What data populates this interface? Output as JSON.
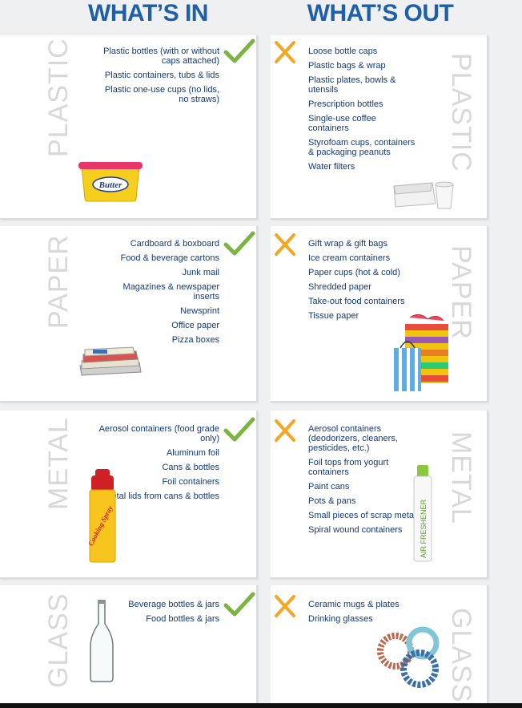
{
  "header": {
    "in_title": "WHAT’S IN",
    "out_title": "WHAT’S OUT"
  },
  "colors": {
    "title": "#1e5fa8",
    "text": "#123a78",
    "check": "#7cb342",
    "x": "#f5a623",
    "category": "#d8d8d8"
  },
  "icons": {
    "in": "checkmark-icon",
    "out": "x-mark-icon"
  },
  "sections": {
    "plastic": {
      "label": "PLASTIC",
      "in": [
        "Plastic bottles (with or without caps attached)",
        "Plastic containers, tubs & lids",
        "Plastic one-use cups (no lids, no straws)"
      ],
      "out": [
        "Loose bottle caps",
        "Plastic bags & wrap",
        "Plastic plates, bowls & utensils",
        "Prescription bottles",
        "Single-use coffee containers",
        "Styrofoam cups, containers & packaging peanuts",
        "Water filters"
      ],
      "in_image_text": "Butter"
    },
    "paper": {
      "label": "PAPER",
      "in": [
        "Cardboard & boxboard",
        "Food & beverage cartons",
        "Junk mail",
        "Magazines & newspaper inserts",
        "Newsprint",
        "Office paper",
        "Pizza boxes"
      ],
      "out": [
        "Gift wrap & gift bags",
        "Ice cream containers",
        "Paper cups (hot & cold)",
        "Shredded paper",
        "Take-out food containers",
        "Tissue paper"
      ]
    },
    "metal": {
      "label": "METAL",
      "in": [
        "Aerosol containers (food grade only)",
        "Aluminum foil",
        "Cans & bottles",
        "Foil containers",
        "Metal lids from cans & bottles"
      ],
      "out": [
        "Aerosol containers (deodorizers, cleaners, pesticides, etc.)",
        "Foil tops from yogurt containers",
        "Paint cans",
        "Pots & pans",
        "Small pieces of scrap metal",
        "Spiral wound containers"
      ],
      "in_image_text": "Cooking Spray",
      "out_image_text": "AIR FRESHENER"
    },
    "glass": {
      "label": "GLASS",
      "in": [
        "Beverage bottles & jars",
        "Food bottles & jars"
      ],
      "out": [
        "Ceramic mugs & plates",
        "Drinking glasses"
      ]
    }
  }
}
